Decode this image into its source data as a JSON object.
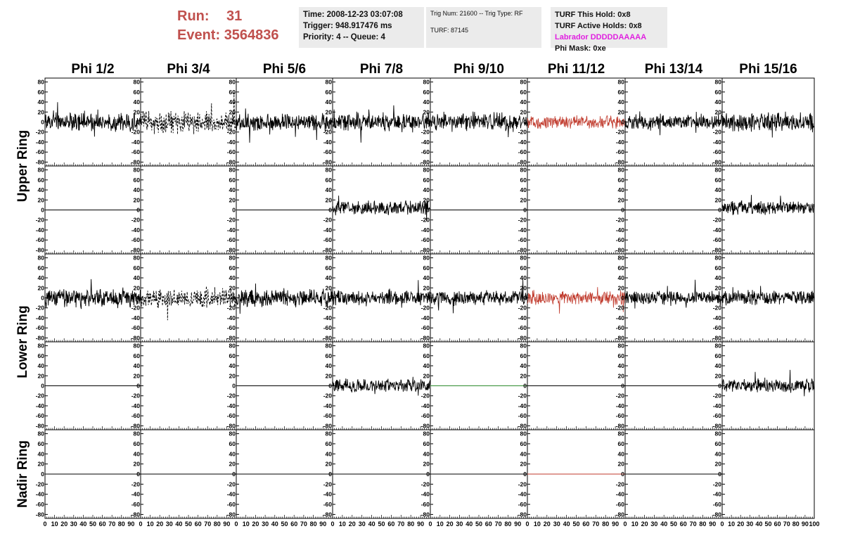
{
  "header": {
    "run_label": "Run:",
    "run_value": "31",
    "event_label": "Event:",
    "event_value": "3564836",
    "time_line": "Time: 2008-12-23 03:07:08",
    "trigger_line": "Trigger: 948.917476 ms",
    "priority_line": "Priority: 4 -- Queue: 4",
    "trig_line": "Trig Num: 21600 -- Trig Type: RF",
    "turf_line": "TURF: 87145",
    "turf_hold_line": "TURF This Hold: 0x8",
    "turf_active_line": "TURF Active Holds: 0x8",
    "labrador_line": "Labrador DDDDDAAAAA",
    "phi_mask_line": "Phi Mask: 0xe",
    "colors": {
      "run_text": "#c0504d",
      "labrador_text": "#e020e0",
      "panel_bg": "#ebebeb"
    }
  },
  "chart_data": {
    "type": "line",
    "columns": [
      "Phi 1/2",
      "Phi 3/4",
      "Phi 5/6",
      "Phi 7/8",
      "Phi 9/10",
      "Phi 11/12",
      "Phi 13/14",
      "Phi 15/16"
    ],
    "row_groups": [
      {
        "label": "Upper Ring",
        "rows": [
          0,
          1
        ]
      },
      {
        "label": "Lower Ring",
        "rows": [
          2,
          3
        ]
      },
      {
        "label": "Nadir Ring",
        "rows": [
          4
        ]
      }
    ],
    "xlim": [
      0,
      100
    ],
    "x_ticks": [
      0,
      10,
      20,
      30,
      40,
      50,
      60,
      70,
      80,
      90,
      100
    ],
    "ylim": [
      -85,
      85
    ],
    "y_ticks": [
      -80,
      -60,
      -40,
      -20,
      0,
      20,
      40,
      60,
      80
    ],
    "y_tick_labels": [
      "-80",
      "-60",
      "-40",
      "-20",
      "0",
      "20",
      "40",
      "60",
      "80"
    ],
    "colors": {
      "signal": "#000000",
      "red_trace": "#c0392b",
      "green_trace": "#2e8b2e"
    },
    "cells": [
      [
        {
          "kind": "noise",
          "amp": 15,
          "seed": 1
        },
        {
          "kind": "dashed",
          "amp": 18,
          "seed": 2
        },
        {
          "kind": "noise",
          "amp": 15,
          "seed": 3
        },
        {
          "kind": "noise",
          "amp": 15,
          "seed": 4
        },
        {
          "kind": "noise",
          "amp": 15,
          "seed": 5
        },
        {
          "kind": "red",
          "amp": 11,
          "seed": 6
        },
        {
          "kind": "noise",
          "amp": 13,
          "seed": 7
        },
        {
          "kind": "noise",
          "amp": 15,
          "seed": 8
        }
      ],
      [
        {
          "kind": "flat"
        },
        {
          "kind": "none"
        },
        {
          "kind": "flat"
        },
        {
          "kind": "noise",
          "amp": 12,
          "offset": 4,
          "seed": 9
        },
        {
          "kind": "flat"
        },
        {
          "kind": "flat"
        },
        {
          "kind": "flat"
        },
        {
          "kind": "noise",
          "amp": 11,
          "offset": 4,
          "seed": 10
        }
      ],
      [
        {
          "kind": "noise",
          "amp": 15,
          "seed": 11
        },
        {
          "kind": "dashed",
          "amp": 16,
          "seed": 12
        },
        {
          "kind": "noise",
          "amp": 15,
          "seed": 13
        },
        {
          "kind": "noise",
          "amp": 13,
          "seed": 14
        },
        {
          "kind": "noise",
          "amp": 12,
          "seed": 15
        },
        {
          "kind": "red",
          "amp": 12,
          "seed": 16
        },
        {
          "kind": "noise",
          "amp": 12,
          "seed": 17
        },
        {
          "kind": "noise",
          "amp": 12,
          "seed": 18
        }
      ],
      [
        {
          "kind": "flat"
        },
        {
          "kind": "none"
        },
        {
          "kind": "flat"
        },
        {
          "kind": "noise",
          "amp": 11,
          "seed": 19
        },
        {
          "kind": "green"
        },
        {
          "kind": "flat"
        },
        {
          "kind": "flat"
        },
        {
          "kind": "noise",
          "amp": 11,
          "seed": 20
        }
      ],
      [
        {
          "kind": "flat"
        },
        {
          "kind": "flat"
        },
        {
          "kind": "flat"
        },
        {
          "kind": "flat"
        },
        {
          "kind": "flat"
        },
        {
          "kind": "redflat"
        },
        {
          "kind": "flat"
        },
        {
          "kind": "none"
        }
      ]
    ]
  }
}
